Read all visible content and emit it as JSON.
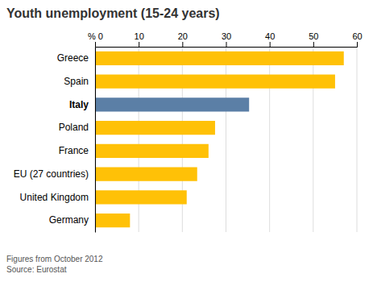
{
  "chart_data": {
    "type": "bar",
    "orientation": "horizontal",
    "title": "Youth unemployment (15-24 years)",
    "categories": [
      "Greece",
      "Spain",
      "Italy",
      "Poland",
      "France",
      "EU (27 countries)",
      "United Kingdom",
      "Germany"
    ],
    "values": [
      57.0,
      55.0,
      35.3,
      27.5,
      26.0,
      23.4,
      21.0,
      8.0
    ],
    "colors": [
      "#FFC107",
      "#FFC107",
      "#5B7FA6",
      "#FFC107",
      "#FFC107",
      "#FFC107",
      "#FFC107",
      "#FFC107"
    ],
    "xlim": [
      0,
      60
    ],
    "xticks": [
      {
        "value": 0,
        "label": "% 0"
      },
      10,
      20,
      30,
      40,
      50,
      60
    ],
    "grid": true,
    "annotations": [
      "Figures from October 2012",
      "Source: Eurostat"
    ]
  }
}
